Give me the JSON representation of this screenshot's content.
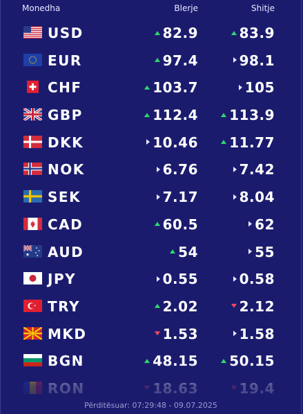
{
  "header": {
    "currency": "Monedha",
    "buy": "Blerje",
    "sell": "Shitje"
  },
  "rows": [
    {
      "code": "USD",
      "flag": "us-flag-icon",
      "buy": "82.9",
      "buy_trend": "up",
      "sell": "83.9",
      "sell_trend": "up"
    },
    {
      "code": "EUR",
      "flag": "eu-flag-icon",
      "buy": "97.4",
      "buy_trend": "up",
      "sell": "98.1",
      "sell_trend": "same"
    },
    {
      "code": "CHF",
      "flag": "ch-flag-icon",
      "buy": "103.7",
      "buy_trend": "up",
      "sell": "105",
      "sell_trend": "same"
    },
    {
      "code": "GBP",
      "flag": "gb-flag-icon",
      "buy": "112.4",
      "buy_trend": "up",
      "sell": "113.9",
      "sell_trend": "up"
    },
    {
      "code": "DKK",
      "flag": "dk-flag-icon",
      "buy": "10.46",
      "buy_trend": "same",
      "sell": "11.77",
      "sell_trend": "up"
    },
    {
      "code": "NOK",
      "flag": "no-flag-icon",
      "buy": "6.76",
      "buy_trend": "same",
      "sell": "7.42",
      "sell_trend": "same"
    },
    {
      "code": "SEK",
      "flag": "se-flag-icon",
      "buy": "7.17",
      "buy_trend": "same",
      "sell": "8.04",
      "sell_trend": "same"
    },
    {
      "code": "CAD",
      "flag": "ca-flag-icon",
      "buy": "60.5",
      "buy_trend": "up",
      "sell": "62",
      "sell_trend": "same"
    },
    {
      "code": "AUD",
      "flag": "au-flag-icon",
      "buy": "54",
      "buy_trend": "up",
      "sell": "55",
      "sell_trend": "same"
    },
    {
      "code": "JPY",
      "flag": "jp-flag-icon",
      "buy": "0.55",
      "buy_trend": "same",
      "sell": "0.58",
      "sell_trend": "same"
    },
    {
      "code": "TRY",
      "flag": "tr-flag-icon",
      "buy": "2.02",
      "buy_trend": "up",
      "sell": "2.12",
      "sell_trend": "down"
    },
    {
      "code": "MKD",
      "flag": "mk-flag-icon",
      "buy": "1.53",
      "buy_trend": "down",
      "sell": "1.58",
      "sell_trend": "same"
    },
    {
      "code": "BGN",
      "flag": "bg-flag-icon",
      "buy": "48.15",
      "buy_trend": "up",
      "sell": "50.15",
      "sell_trend": "up"
    },
    {
      "code": "RON",
      "flag": "ro-flag-icon",
      "buy": "18.63",
      "buy_trend": "down",
      "sell": "19.4",
      "sell_trend": "down"
    }
  ],
  "footer": {
    "updated": "Përditësuar: 07:29:48 - 09.07.2025"
  },
  "colors": {
    "background": "#1b1b6e",
    "up": "#2bd96b",
    "down": "#f04a5a",
    "same": "#e6e8ff"
  }
}
